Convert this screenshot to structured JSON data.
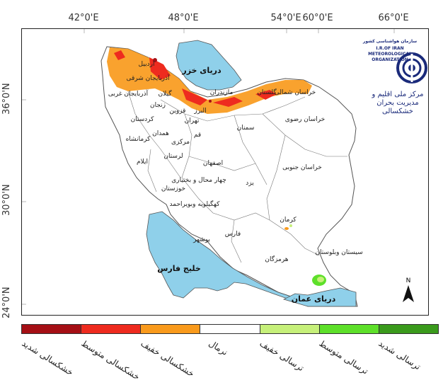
{
  "axes": {
    "top_ticks": [
      {
        "label": "42°0'E"
      },
      {
        "label": "48°0'E"
      },
      {
        "label": "54°0'E"
      },
      {
        "label": "60°0'E"
      },
      {
        "label": "66°0'E"
      }
    ],
    "left_ticks": [
      {
        "label": "36°0'N"
      },
      {
        "label": "30°0'N"
      },
      {
        "label": "24°0'N"
      }
    ]
  },
  "seas": {
    "caspian": "دریای خزر",
    "persian_gulf": "خلیج فارس",
    "oman_sea": "دریای عمان"
  },
  "provinces": [
    "اردبیل",
    "آذربایجان شرقی",
    "آذربایجان غربی",
    "گیلان",
    "زنجان",
    "مازندران",
    "البرز",
    "قزوین",
    "تهران",
    "گلستان",
    "خراسان شمالی",
    "خراسان رضوی",
    "سمنان",
    "کردستان",
    "همدان",
    "کرمانشاه",
    "مرکزی",
    "قم",
    "لرستان",
    "ایلام",
    "اصفهان",
    "خراسان جنوبی",
    "چهار محال و بختیاری",
    "یزد",
    "خوزستان",
    "کهگیلویه وبویراحمد",
    "کرمان",
    "فارس",
    "بوشهر",
    "هرمزگان",
    "سیستان وبلوستان"
  ],
  "logo": {
    "line1": "سازمان هواشناسی کشور",
    "line2": "I.R.OF IRAN",
    "line3": "METEOROLOGICAL",
    "line4": "ORGANIZATION",
    "center_name": "مرکز ملی اقلیم و مدیریت بحران خشکسالی"
  },
  "north_arrow": "N",
  "legend": {
    "categories": [
      {
        "label": "خشکسالی شدید",
        "color": "#a50f15"
      },
      {
        "label": "خشکسالی متوسط",
        "color": "#ee2b1f"
      },
      {
        "label": "خشکسالی خفیف",
        "color": "#f99a1c"
      },
      {
        "label": "نرمال",
        "color": "#ffffff"
      },
      {
        "label": "ترسالی خفیف",
        "color": "#c6f07a"
      },
      {
        "label": "ترسالی متوسط",
        "color": "#5ee02a"
      },
      {
        "label": "ترسالی شدید",
        "color": "#3a9a1c"
      }
    ]
  },
  "colors": {
    "sea": "#8fd0ea",
    "land": "#ffffff",
    "border": "#555555"
  }
}
